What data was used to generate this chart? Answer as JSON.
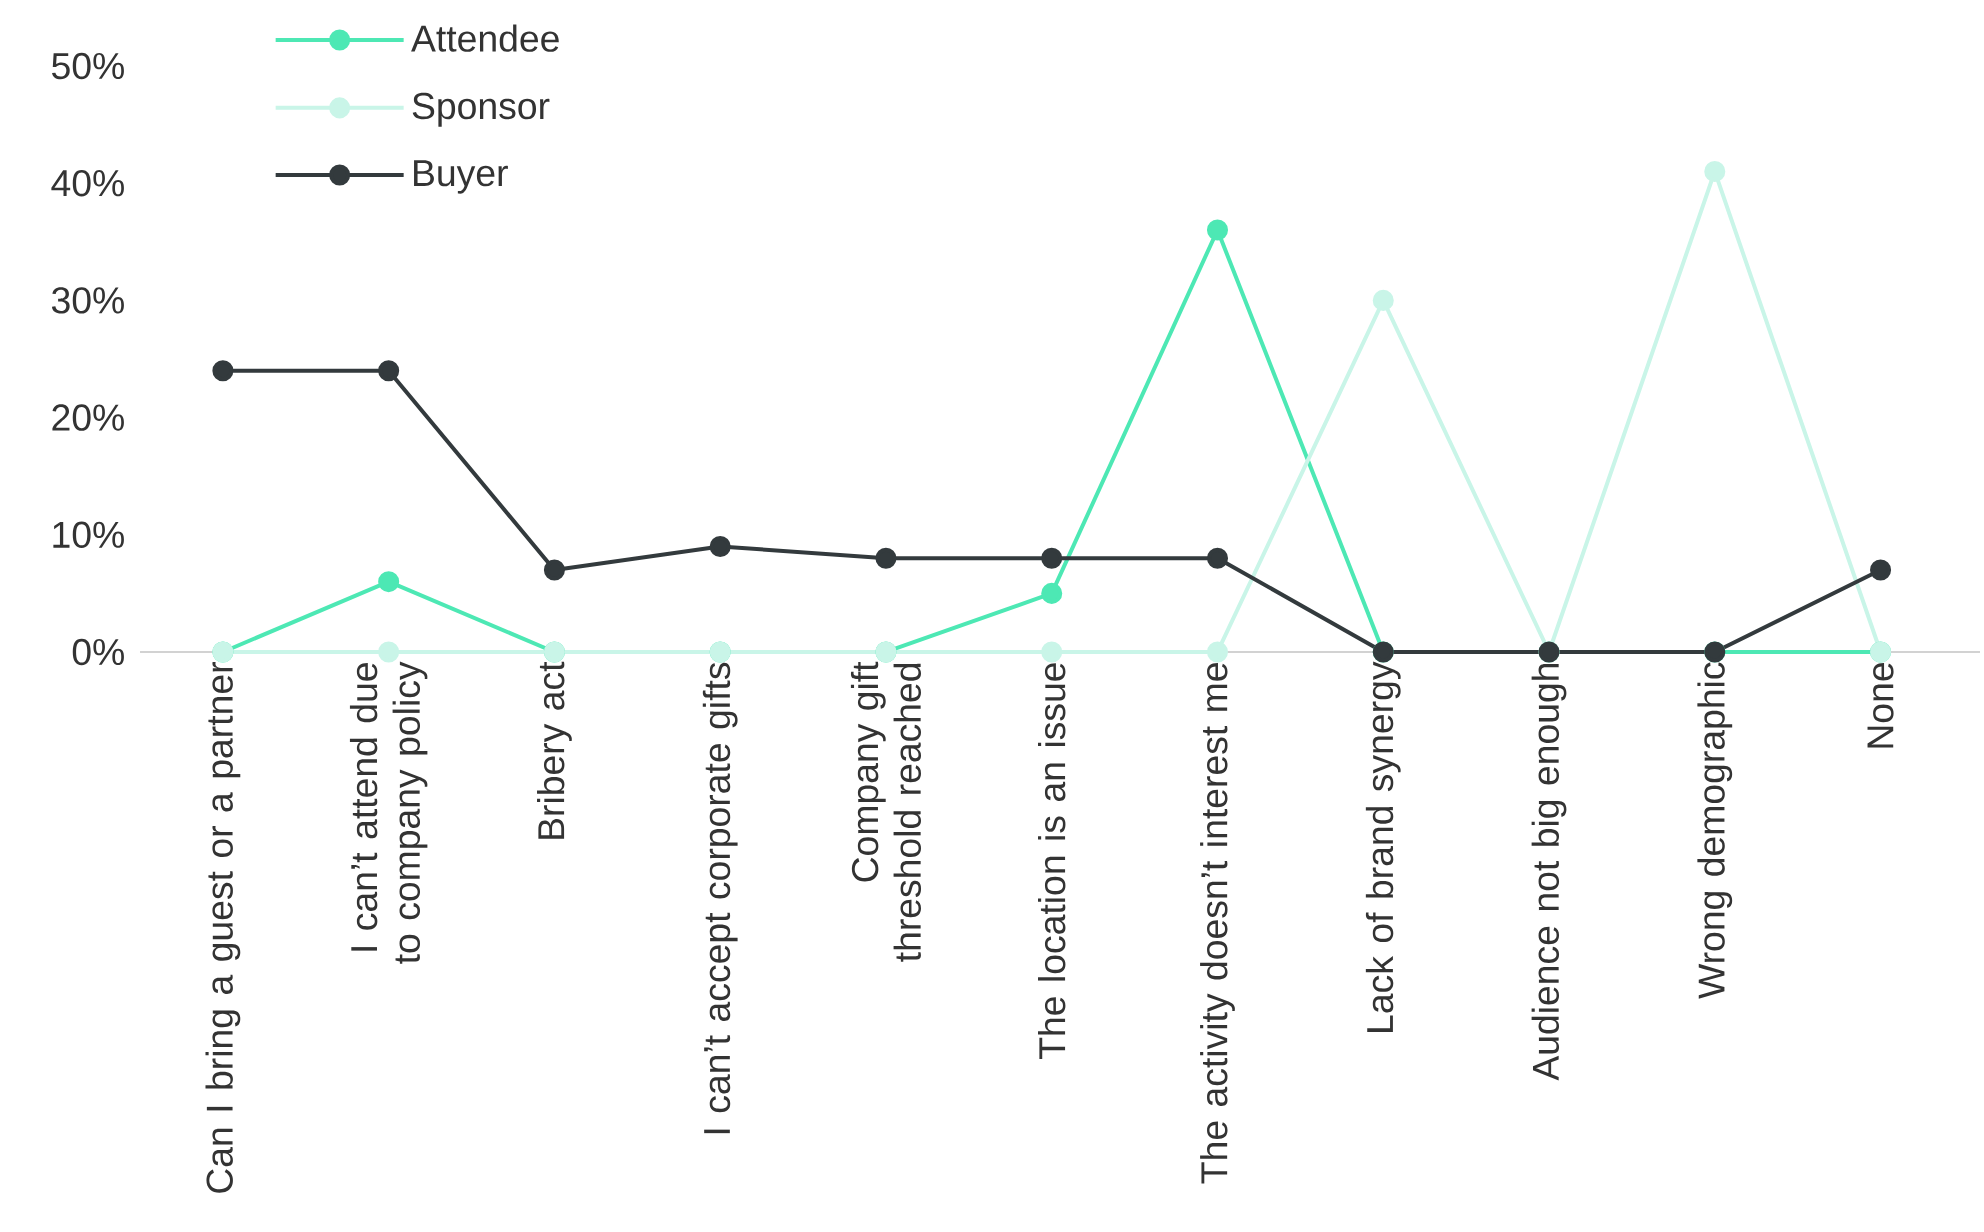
{
  "chart_data": {
    "type": "line",
    "categories": [
      "Can I bring a guest or a partner",
      "I can’t attend due to company policy",
      "Bribery act",
      "I can’t accept corporate gifts",
      "Company gift threshold reached",
      "The location is an issue",
      "The activity doesn’t interest me",
      "Lack of brand synergy",
      "Audience not big enough",
      "Wrong demographic",
      "None"
    ],
    "series": [
      {
        "name": "Attendee",
        "color": "#4de8b4",
        "values": [
          0,
          6,
          0,
          0,
          0,
          5,
          36,
          0,
          0,
          0,
          0
        ]
      },
      {
        "name": "Sponsor",
        "color": "#c9f5e8",
        "values": [
          0,
          0,
          0,
          0,
          0,
          0,
          0,
          30,
          0,
          41,
          0
        ]
      },
      {
        "name": "Buyer",
        "color": "#333a3d",
        "values": [
          24,
          24,
          7,
          9,
          8,
          8,
          8,
          0,
          0,
          0,
          7
        ]
      }
    ],
    "ylim": [
      0,
      50
    ],
    "yticks": [
      {
        "value": 0,
        "label": "0%"
      },
      {
        "value": 10,
        "label": "10%"
      },
      {
        "value": 20,
        "label": "20%"
      },
      {
        "value": 30,
        "label": "30%"
      },
      {
        "value": 40,
        "label": "40%"
      },
      {
        "value": 50,
        "label": "50%"
      }
    ],
    "legend": "top left",
    "marker": "circle",
    "line_style": "solid",
    "grid": false
  }
}
